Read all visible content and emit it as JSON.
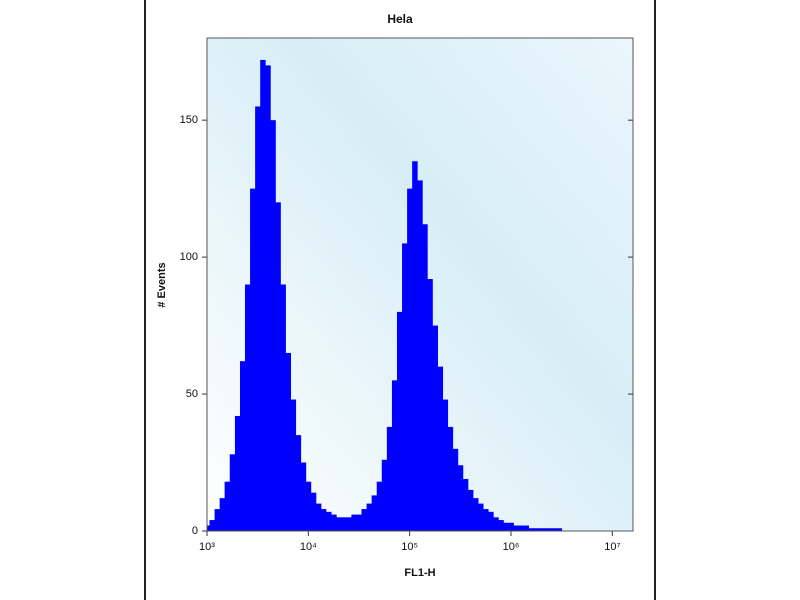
{
  "chart_data": {
    "type": "histogram",
    "title": "Hela",
    "x_label": "FL1-H",
    "y_label": "# Events",
    "x_log": true,
    "color": "#0000ff",
    "x": [
      1000,
      1120,
      1260,
      1410,
      1580,
      1780,
      2000,
      2240,
      2510,
      2820,
      3160,
      3550,
      3980,
      4470,
      5010,
      5620,
      6310,
      7080,
      7940,
      8910,
      10000,
      11200,
      12600,
      14100,
      15800,
      17800,
      20000,
      22400,
      25100,
      28200,
      31600,
      35500,
      39800,
      44700,
      50100,
      56200,
      63100,
      70800,
      79400,
      89100,
      100000,
      112000,
      126000,
      141000,
      158000,
      178000,
      200000,
      224000,
      251000,
      282000,
      316000,
      355000,
      398000,
      447000,
      501000,
      562000,
      631000,
      708000,
      794000,
      891000,
      1000000,
      1120000,
      1260000,
      1410000,
      1580000,
      1780000,
      2000000,
      2510000,
      3980000,
      6310000,
      10000000,
      15800000
    ],
    "values": [
      2,
      4,
      8,
      12,
      18,
      28,
      42,
      62,
      90,
      125,
      155,
      172,
      170,
      150,
      120,
      90,
      65,
      48,
      35,
      25,
      18,
      14,
      10,
      8,
      7,
      6,
      5,
      5,
      5,
      6,
      6,
      8,
      10,
      13,
      18,
      26,
      38,
      55,
      80,
      105,
      125,
      135,
      128,
      112,
      92,
      75,
      60,
      48,
      38,
      30,
      24,
      19,
      15,
      12,
      10,
      8,
      7,
      5,
      4,
      3,
      3,
      2,
      2,
      2,
      1,
      1,
      1,
      1,
      0,
      0,
      0,
      0
    ],
    "xlim": [
      1000,
      16000000
    ],
    "ylim": [
      0,
      180
    ],
    "xticks": [
      {
        "value": 1000,
        "label": "10³"
      },
      {
        "value": 10000,
        "label": "10⁴"
      },
      {
        "value": 100000,
        "label": "10⁵"
      },
      {
        "value": 1000000,
        "label": "10⁶"
      },
      {
        "value": 10000000,
        "label": "10⁷"
      }
    ],
    "yticks": [
      0,
      50,
      100,
      150
    ]
  }
}
